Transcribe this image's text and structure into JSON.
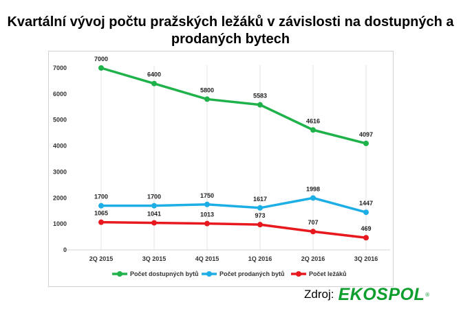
{
  "title": "Kvartální vývoj počtu pražských ležáků v závislosti na dostupných a prodaných bytech",
  "source": {
    "label": "Zdroj:",
    "brand": "EKOSPOL",
    "mark": "®",
    "brand_color": "#0d9e2e"
  },
  "chart_data": {
    "type": "line",
    "categories": [
      "2Q 2015",
      "3Q 2015",
      "4Q 2015",
      "1Q 2016",
      "2Q 2016",
      "3Q 2016"
    ],
    "ylim": [
      0,
      7000
    ],
    "yticks": [
      0,
      1000,
      2000,
      3000,
      4000,
      5000,
      6000,
      7000
    ],
    "grid": "vertical",
    "legend": "bottom",
    "series": [
      {
        "name": "Počet dostupných bytů",
        "color": "#1fb24a",
        "values": [
          7000,
          6400,
          5800,
          5583,
          4616,
          4097
        ]
      },
      {
        "name": "Počet prodaných bytů",
        "color": "#1eaee6",
        "values": [
          1700,
          1700,
          1750,
          1617,
          1998,
          1447
        ]
      },
      {
        "name": "Počet ležáků",
        "color": "#e8191e",
        "values": [
          1065,
          1041,
          1013,
          973,
          707,
          469
        ]
      }
    ]
  }
}
